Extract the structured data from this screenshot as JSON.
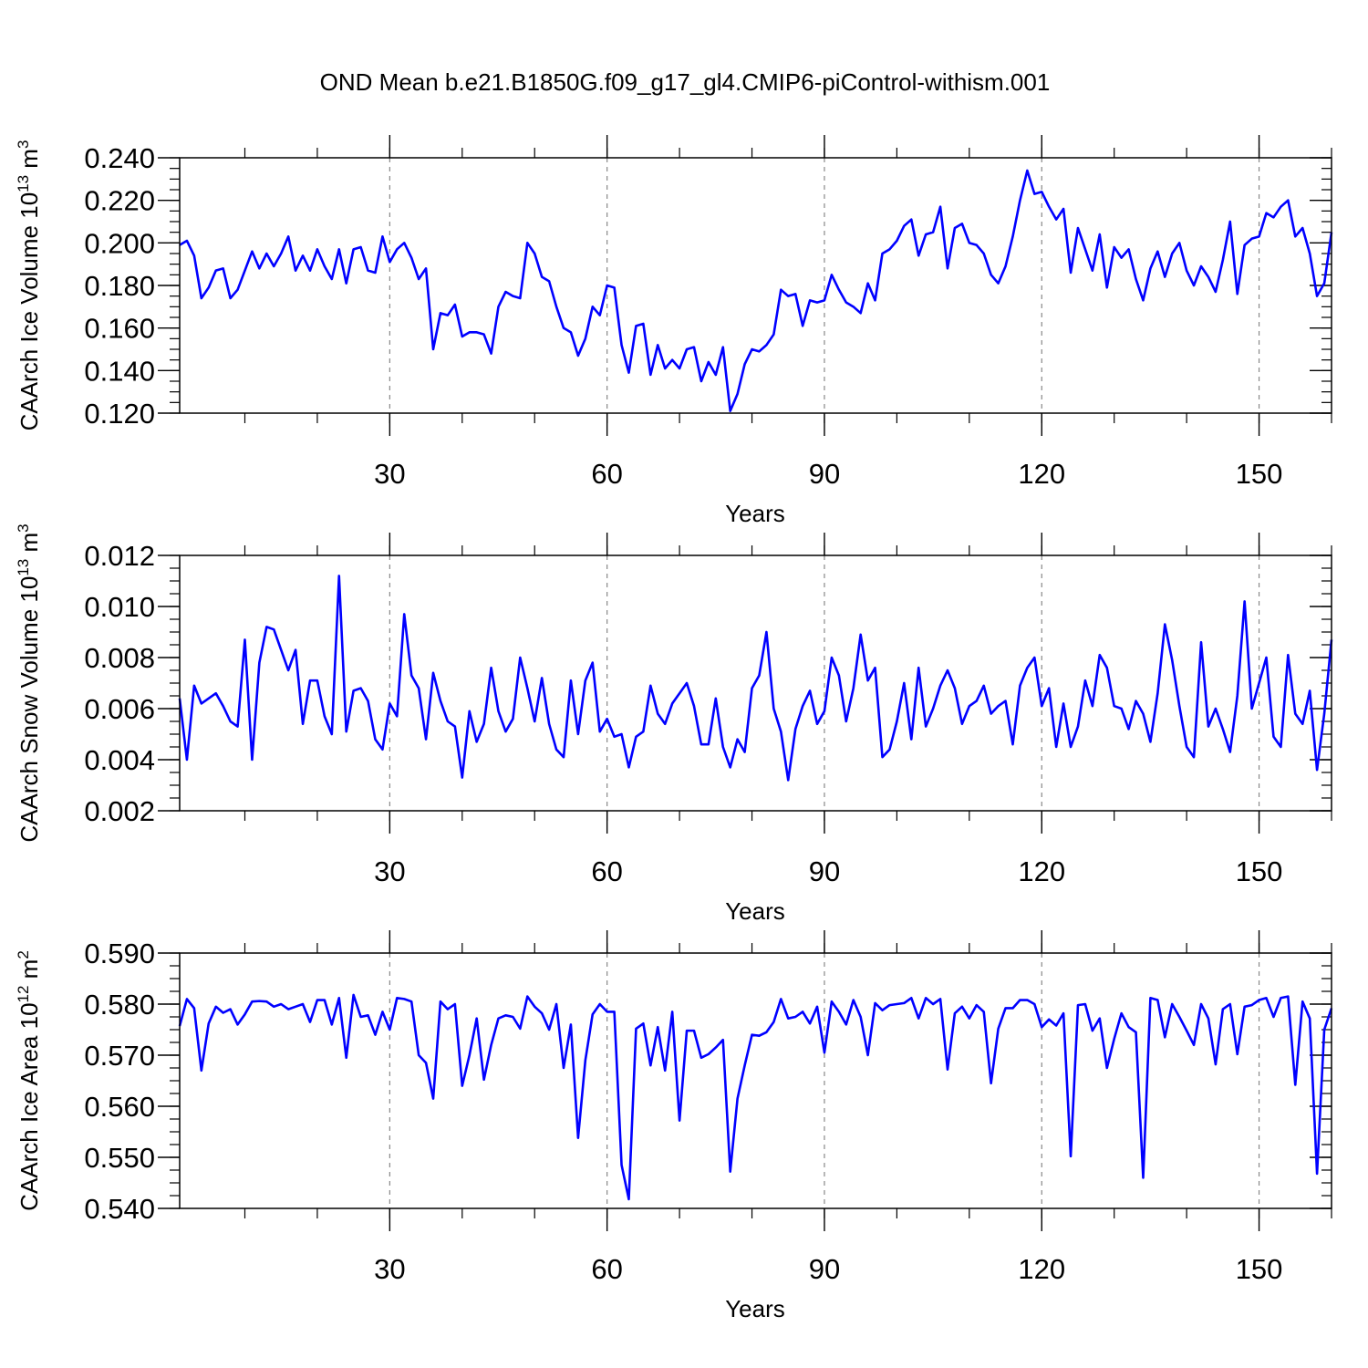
{
  "figure_title": "OND Mean b.e21.B1850G.f09_g17_gl4.CMIP6-piControl-withism.001",
  "line_color": "#0000ff",
  "grid_color": "#888888",
  "chart_data": [
    {
      "type": "line",
      "ylabel_main": "CAArch Ice Volume 10",
      "ylabel_exp": "13",
      "ylabel_unit": "m",
      "ylabel_unit_exp": "3",
      "xlabel": "Years",
      "xlim": [
        1,
        160
      ],
      "ylim": [
        0.12,
        0.24
      ],
      "yticks": [
        0.12,
        0.14,
        0.16,
        0.18,
        0.2,
        0.22,
        0.24
      ],
      "ytick_labels": [
        "0.120",
        "0.140",
        "0.160",
        "0.180",
        "0.200",
        "0.220",
        "0.240"
      ],
      "yminor_step": 0.005,
      "xticks": [
        30,
        60,
        90,
        120,
        150
      ],
      "xtick_labels": [
        "30",
        "60",
        "90",
        "120",
        "150"
      ],
      "xminor_step": 10,
      "values": [
        0.199,
        0.201,
        0.194,
        0.174,
        0.179,
        0.187,
        0.188,
        0.174,
        0.178,
        0.187,
        0.196,
        0.188,
        0.195,
        0.189,
        0.195,
        0.203,
        0.187,
        0.194,
        0.187,
        0.197,
        0.189,
        0.183,
        0.197,
        0.181,
        0.197,
        0.198,
        0.187,
        0.186,
        0.203,
        0.191,
        0.197,
        0.2,
        0.193,
        0.183,
        0.188,
        0.15,
        0.167,
        0.166,
        0.171,
        0.156,
        0.158,
        0.158,
        0.157,
        0.148,
        0.17,
        0.177,
        0.175,
        0.174,
        0.2,
        0.195,
        0.184,
        0.182,
        0.17,
        0.16,
        0.158,
        0.147,
        0.155,
        0.17,
        0.166,
        0.18,
        0.179,
        0.152,
        0.139,
        0.161,
        0.162,
        0.138,
        0.152,
        0.141,
        0.145,
        0.141,
        0.15,
        0.151,
        0.135,
        0.144,
        0.138,
        0.151,
        0.121,
        0.129,
        0.143,
        0.15,
        0.149,
        0.152,
        0.157,
        0.178,
        0.175,
        0.176,
        0.161,
        0.173,
        0.172,
        0.173,
        0.185,
        0.178,
        0.172,
        0.17,
        0.167,
        0.181,
        0.173,
        0.195,
        0.197,
        0.201,
        0.208,
        0.211,
        0.194,
        0.204,
        0.205,
        0.217,
        0.188,
        0.207,
        0.209,
        0.2,
        0.199,
        0.195,
        0.185,
        0.181,
        0.189,
        0.203,
        0.22,
        0.234,
        0.223,
        0.224,
        0.217,
        0.211,
        0.216,
        0.186,
        0.207,
        0.197,
        0.187,
        0.204,
        0.179,
        0.198,
        0.193,
        0.197,
        0.183,
        0.173,
        0.188,
        0.196,
        0.184,
        0.195,
        0.2,
        0.187,
        0.18,
        0.189,
        0.184,
        0.177,
        0.192,
        0.21,
        0.176,
        0.199,
        0.202,
        0.203,
        0.214,
        0.212,
        0.217,
        0.22,
        0.203,
        0.207,
        0.195,
        0.175,
        0.181,
        0.205
      ]
    },
    {
      "type": "line",
      "ylabel_main": "CAArch Snow Volume 10",
      "ylabel_exp": "13",
      "ylabel_unit": "m",
      "ylabel_unit_exp": "3",
      "xlabel": "Years",
      "xlim": [
        1,
        160
      ],
      "ylim": [
        0.002,
        0.012
      ],
      "yticks": [
        0.002,
        0.004,
        0.006,
        0.008,
        0.01,
        0.012
      ],
      "ytick_labels": [
        "0.002",
        "0.004",
        "0.006",
        "0.008",
        "0.010",
        "0.012"
      ],
      "yminor_step": 0.0005,
      "xticks": [
        30,
        60,
        90,
        120,
        150
      ],
      "xtick_labels": [
        "30",
        "60",
        "90",
        "120",
        "150"
      ],
      "xminor_step": 10,
      "values": [
        0.0064,
        0.004,
        0.0069,
        0.0062,
        0.0064,
        0.0066,
        0.0061,
        0.0055,
        0.0053,
        0.0087,
        0.004,
        0.0078,
        0.0092,
        0.0091,
        0.0083,
        0.0075,
        0.0083,
        0.0054,
        0.0071,
        0.0071,
        0.0057,
        0.005,
        0.0112,
        0.0051,
        0.0067,
        0.0068,
        0.0063,
        0.0048,
        0.0044,
        0.0062,
        0.0057,
        0.0097,
        0.0073,
        0.0068,
        0.0048,
        0.0074,
        0.0063,
        0.0055,
        0.0053,
        0.0033,
        0.0059,
        0.0047,
        0.0054,
        0.0076,
        0.0059,
        0.0051,
        0.0056,
        0.008,
        0.0068,
        0.0055,
        0.0072,
        0.0054,
        0.0044,
        0.0041,
        0.0071,
        0.005,
        0.0071,
        0.0078,
        0.0051,
        0.0056,
        0.0049,
        0.005,
        0.0037,
        0.0049,
        0.0051,
        0.0069,
        0.0058,
        0.0054,
        0.0062,
        0.0066,
        0.007,
        0.0061,
        0.0046,
        0.0046,
        0.0064,
        0.0045,
        0.0037,
        0.0048,
        0.0043,
        0.0068,
        0.0073,
        0.009,
        0.006,
        0.0051,
        0.0032,
        0.0052,
        0.0061,
        0.0067,
        0.0054,
        0.0059,
        0.008,
        0.0073,
        0.0055,
        0.0068,
        0.0089,
        0.0071,
        0.0076,
        0.0041,
        0.0044,
        0.0055,
        0.007,
        0.0048,
        0.0076,
        0.0053,
        0.006,
        0.0069,
        0.0075,
        0.0068,
        0.0054,
        0.0061,
        0.0063,
        0.0069,
        0.0058,
        0.0061,
        0.0063,
        0.0046,
        0.0069,
        0.0076,
        0.008,
        0.0061,
        0.0068,
        0.0045,
        0.0062,
        0.0045,
        0.0053,
        0.0071,
        0.0061,
        0.0081,
        0.0076,
        0.0061,
        0.006,
        0.0052,
        0.0063,
        0.0058,
        0.0047,
        0.0066,
        0.0093,
        0.0079,
        0.0061,
        0.0045,
        0.0041,
        0.0086,
        0.0053,
        0.006,
        0.0052,
        0.0043,
        0.0065,
        0.0102,
        0.006,
        0.007,
        0.008,
        0.0049,
        0.0045,
        0.0081,
        0.0058,
        0.0054,
        0.0067,
        0.0036,
        0.0058,
        0.0087
      ]
    },
    {
      "type": "line",
      "ylabel_main": "CAArch Ice Area 10",
      "ylabel_exp": "12",
      "ylabel_unit": "m",
      "ylabel_unit_exp": "2",
      "xlabel": "Years",
      "xlim": [
        1,
        160
      ],
      "ylim": [
        0.54,
        0.59
      ],
      "yticks": [
        0.54,
        0.55,
        0.56,
        0.57,
        0.58,
        0.59
      ],
      "ytick_labels": [
        "0.540",
        "0.550",
        "0.560",
        "0.570",
        "0.580",
        "0.590"
      ],
      "yminor_step": 0.0025,
      "xticks": [
        30,
        60,
        90,
        120,
        150
      ],
      "xtick_labels": [
        "30",
        "60",
        "90",
        "120",
        "150"
      ],
      "xminor_step": 10,
      "values": [
        0.5757,
        0.581,
        0.5792,
        0.567,
        0.5762,
        0.5795,
        0.5783,
        0.579,
        0.576,
        0.578,
        0.5805,
        0.5806,
        0.5805,
        0.5795,
        0.58,
        0.579,
        0.5795,
        0.58,
        0.5765,
        0.5808,
        0.5808,
        0.576,
        0.5812,
        0.5695,
        0.5818,
        0.5775,
        0.5778,
        0.574,
        0.5785,
        0.575,
        0.5812,
        0.581,
        0.5805,
        0.57,
        0.5685,
        0.5615,
        0.5805,
        0.579,
        0.58,
        0.564,
        0.57,
        0.5772,
        0.5652,
        0.572,
        0.5772,
        0.5778,
        0.5775,
        0.5752,
        0.5815,
        0.5795,
        0.5782,
        0.575,
        0.58,
        0.5675,
        0.576,
        0.5538,
        0.569,
        0.578,
        0.58,
        0.5785,
        0.5785,
        0.5485,
        0.5418,
        0.5752,
        0.5762,
        0.568,
        0.5755,
        0.567,
        0.5785,
        0.5572,
        0.5748,
        0.5748,
        0.5695,
        0.5702,
        0.5715,
        0.573,
        0.5472,
        0.5615,
        0.568,
        0.574,
        0.5738,
        0.5745,
        0.5765,
        0.581,
        0.5772,
        0.5775,
        0.5785,
        0.5762,
        0.5795,
        0.5705,
        0.5805,
        0.5785,
        0.576,
        0.5808,
        0.5775,
        0.57,
        0.5802,
        0.5788,
        0.5798,
        0.58,
        0.5802,
        0.5812,
        0.5772,
        0.5812,
        0.58,
        0.581,
        0.5672,
        0.5782,
        0.5795,
        0.5772,
        0.5798,
        0.5785,
        0.5645,
        0.5752,
        0.5792,
        0.5792,
        0.5808,
        0.5808,
        0.58,
        0.5755,
        0.577,
        0.5758,
        0.5782,
        0.5502,
        0.5798,
        0.58,
        0.5748,
        0.5772,
        0.5675,
        0.5732,
        0.5782,
        0.5755,
        0.5745,
        0.546,
        0.5812,
        0.5808,
        0.5735,
        0.58,
        0.5775,
        0.5748,
        0.572,
        0.58,
        0.5772,
        0.5682,
        0.579,
        0.58,
        0.5702,
        0.5795,
        0.5798,
        0.5808,
        0.5812,
        0.5775,
        0.5812,
        0.5815,
        0.5642,
        0.5805,
        0.5772,
        0.5468,
        0.575,
        0.5792
      ]
    }
  ]
}
